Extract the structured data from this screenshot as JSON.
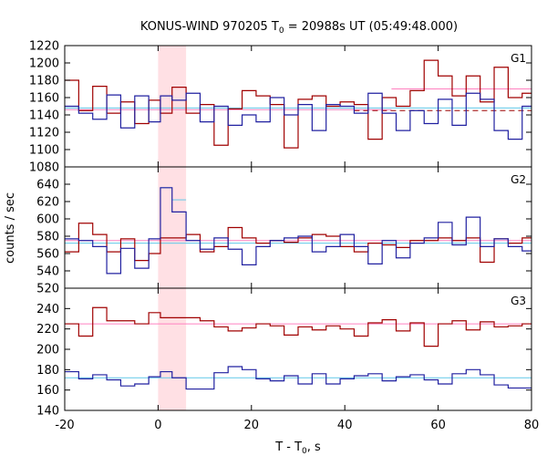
{
  "chart_data": {
    "type": "line",
    "title": "KONUS-WIND 970205 T0 = 20988s UT (05:49:48.000)",
    "title_parts": {
      "prefix": "KONUS-WIND 970205 T",
      "subscript": "0",
      "suffix": " = 20988s UT (05:49:48.000)"
    },
    "xlabel": "T - T0, s",
    "xlabel_parts": {
      "prefix": "T - T",
      "subscript": "0",
      "suffix": ", s"
    },
    "ylabel": "counts / sec",
    "xlim": [
      -20,
      80
    ],
    "x_ticks": [
      -20,
      0,
      20,
      40,
      60,
      80
    ],
    "highlight_interval": [
      0,
      6
    ],
    "bin_edges": [
      -20,
      -17,
      -14,
      -11,
      -8,
      -5,
      -2,
      0.5,
      3,
      6,
      9,
      12,
      15,
      18,
      21,
      24,
      27,
      30,
      33,
      36,
      39,
      42,
      45,
      48,
      51,
      54,
      57,
      60,
      63,
      66,
      69,
      72,
      75,
      78,
      80
    ],
    "colors": {
      "red_series": "#a00000",
      "blue_series": "#2020a0",
      "pink_fit": "#ff80c0",
      "cyan_fit": "#60c8e8",
      "highlight": "#ffe0e4"
    },
    "panels": [
      {
        "label": "G1",
        "ylim": [
          1080,
          1220
        ],
        "y_ticks": [
          1080,
          1100,
          1120,
          1140,
          1160,
          1180,
          1200,
          1220
        ],
        "series": [
          {
            "color_key": "red_series",
            "values": [
              1180,
              1145,
              1173,
              1142,
              1155,
              1130,
              1157,
              1142,
              1172,
              1142,
              1152,
              1105,
              1147,
              1168,
              1162,
              1152,
              1102,
              1158,
              1162,
              1150,
              1155,
              1152,
              1112,
              1160,
              1150,
              1168,
              1203,
              1185,
              1162,
              1185,
              1155,
              1195,
              1160,
              1165
            ]
          },
          {
            "color_key": "blue_series",
            "values": [
              1150,
              1142,
              1135,
              1163,
              1125,
              1162,
              1132,
              1162,
              1157,
              1165,
              1132,
              1150,
              1128,
              1140,
              1132,
              1160,
              1140,
              1152,
              1122,
              1152,
              1150,
              1142,
              1165,
              1142,
              1122,
              1145,
              1130,
              1158,
              1128,
              1165,
              1158,
              1122,
              1112,
              1150
            ]
          }
        ],
        "fits": [
          {
            "color_key": "pink_fit",
            "x": [
              50,
              80
            ],
            "y": [
              1170,
              1170
            ],
            "dash": false
          },
          {
            "color_key": "cyan_fit",
            "x": [
              -20,
              80
            ],
            "y": [
              1148,
              1148
            ],
            "dash": false
          },
          {
            "color_key": "pink_fit",
            "x": [
              -20,
              50
            ],
            "y": [
              1146,
              1146
            ],
            "dash": false
          },
          {
            "color_key": "red_series",
            "x": [
              42,
              80
            ],
            "y": [
              1145,
              1145
            ],
            "dash": true
          }
        ]
      },
      {
        "label": "G2",
        "ylim": [
          520,
          660
        ],
        "y_ticks": [
          520,
          540,
          560,
          580,
          600,
          620,
          640
        ],
        "series": [
          {
            "color_key": "red_series",
            "values": [
              562,
              595,
              582,
              562,
              577,
              552,
              560,
              578,
              578,
              582,
              562,
              568,
              590,
              578,
              572,
              575,
              573,
              578,
              582,
              580,
              568,
              562,
              572,
              570,
              567,
              575,
              575,
              578,
              575,
              578,
              550,
              577,
              572,
              578
            ]
          },
          {
            "color_key": "blue_series",
            "values": [
              577,
              575,
              568,
              537,
              566,
              543,
              577,
              636,
              608,
              575,
              565,
              578,
              565,
              547,
              568,
              575,
              578,
              580,
              562,
              568,
              582,
              568,
              548,
              575,
              555,
              572,
              578,
              596,
              570,
              602,
              568,
              577,
              568,
              563
            ]
          }
        ],
        "fits": [
          {
            "color_key": "cyan_fit",
            "x": [
              0.5,
              3
            ],
            "y": [
              636,
              636
            ],
            "dash": false
          },
          {
            "color_key": "cyan_fit",
            "x": [
              3,
              6
            ],
            "y": [
              622,
              622
            ],
            "dash": false
          },
          {
            "color_key": "pink_fit",
            "x": [
              -20,
              80
            ],
            "y": [
              575,
              575
            ],
            "dash": false
          },
          {
            "color_key": "cyan_fit",
            "x": [
              -20,
              80
            ],
            "y": [
              572,
              572
            ],
            "dash": false
          }
        ]
      },
      {
        "label": "G3",
        "ylim": [
          140,
          260
        ],
        "y_ticks": [
          140,
          160,
          180,
          200,
          220,
          240
        ],
        "series": [
          {
            "color_key": "red_series",
            "values": [
              225,
              213,
              241,
              228,
              228,
              225,
              236,
              231,
              231,
              231,
              228,
              222,
              218,
              221,
              225,
              223,
              214,
              222,
              219,
              223,
              220,
              213,
              226,
              229,
              218,
              226,
              203,
              225,
              228,
              219,
              227,
              222,
              223,
              225
            ]
          },
          {
            "color_key": "blue_series",
            "values": [
              178,
              171,
              175,
              170,
              164,
              166,
              173,
              178,
              172,
              161,
              161,
              177,
              183,
              180,
              171,
              169,
              174,
              166,
              176,
              166,
              171,
              174,
              176,
              169,
              173,
              175,
              170,
              166,
              176,
              180,
              175,
              165,
              162,
              162
            ]
          }
        ],
        "fits": [
          {
            "color_key": "pink_fit",
            "x": [
              -20,
              80
            ],
            "y": [
              225,
              225
            ],
            "dash": false
          },
          {
            "color_key": "cyan_fit",
            "x": [
              -20,
              80
            ],
            "y": [
              172,
              172
            ],
            "dash": false
          }
        ]
      }
    ]
  }
}
